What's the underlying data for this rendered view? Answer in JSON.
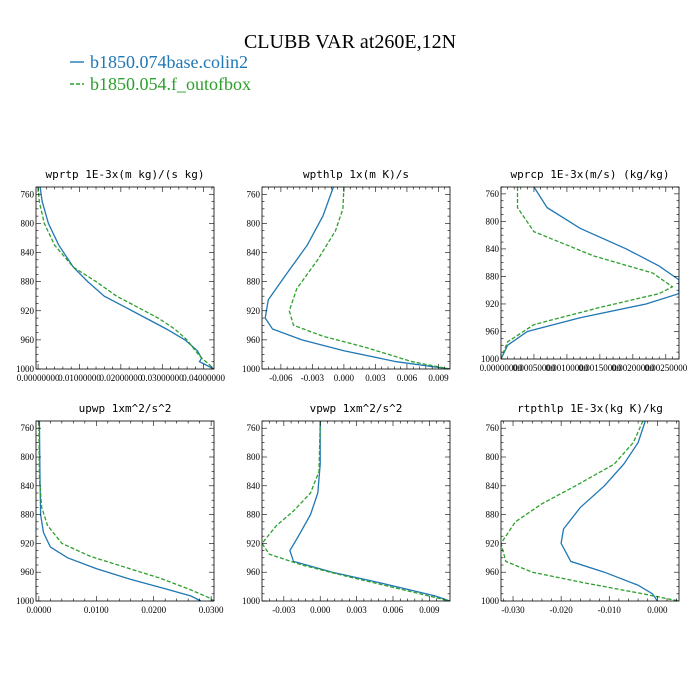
{
  "figure": {
    "title": "CLUBB VAR at260E,12N",
    "legend": [
      {
        "label": "b1850.074base.colin2",
        "color": "#1f77b4",
        "dash": "solid"
      },
      {
        "label": "b1850.054.f_outofbox",
        "color": "#2ca02c",
        "dash": "dashed"
      }
    ]
  },
  "chart_data": [
    {
      "type": "line",
      "title": "wprtp  1E-3x(m kg)/(s kg)",
      "xlim": [
        -0.0005,
        0.0425
      ],
      "ylim": [
        1000,
        750
      ],
      "y_ticks": [
        760,
        800,
        840,
        880,
        920,
        960,
        1000
      ],
      "x_ticks": [
        0.0,
        0.01,
        0.02,
        0.03,
        0.04
      ],
      "x_tick_labels": [
        "0.00000000",
        "0.01000000",
        "0.02000000",
        "0.03000000",
        "0.04000000"
      ],
      "series": [
        {
          "name": "b1850.074base.colin2",
          "color": "#1f77b4",
          "x": [
            0.0005,
            0.001,
            0.0025,
            0.005,
            0.0085,
            0.012,
            0.016,
            0.021,
            0.026,
            0.031,
            0.0355,
            0.0385,
            0.0395,
            0.039,
            0.0425
          ],
          "y": [
            750,
            770,
            800,
            830,
            860,
            880,
            900,
            915,
            930,
            945,
            960,
            975,
            985,
            990,
            1000
          ]
        },
        {
          "name": "b1850.054.f_outofbox",
          "color": "#2ca02c",
          "x": [
            0.0,
            0.0003,
            0.0015,
            0.004,
            0.0085,
            0.014,
            0.019,
            0.024,
            0.029,
            0.033,
            0.036,
            0.038,
            0.0395,
            0.041,
            0.0425
          ],
          "y": [
            750,
            770,
            800,
            830,
            860,
            880,
            900,
            915,
            930,
            945,
            960,
            975,
            985,
            992,
            1000
          ]
        }
      ]
    },
    {
      "type": "line",
      "title": "wpthlp  1x(m K)/s",
      "xlim": [
        -0.0078,
        0.0101
      ],
      "ylim": [
        1000,
        750
      ],
      "y_ticks": [
        760,
        800,
        840,
        880,
        920,
        960,
        1000
      ],
      "x_ticks": [
        -0.006,
        -0.003,
        0.0,
        0.003,
        0.006,
        0.009
      ],
      "x_tick_labels": [
        "-0.006",
        "-0.003",
        "0.000",
        "0.003",
        "0.006",
        "0.009"
      ],
      "series": [
        {
          "name": "b1850.074base.colin2",
          "color": "#1f77b4",
          "x": [
            -0.001,
            -0.002,
            -0.0035,
            -0.0055,
            -0.0072,
            -0.0075,
            -0.0068,
            -0.004,
            0.0,
            0.005,
            0.0101
          ],
          "y": [
            750,
            790,
            830,
            870,
            905,
            930,
            945,
            960,
            975,
            990,
            1000
          ]
        },
        {
          "name": "b1850.054.f_outofbox",
          "color": "#2ca02c",
          "x": [
            0.0,
            -0.0001,
            -0.0008,
            -0.0025,
            -0.0045,
            -0.0052,
            -0.0048,
            -0.002,
            0.002,
            0.0065,
            0.0101
          ],
          "y": [
            750,
            780,
            810,
            850,
            890,
            920,
            940,
            955,
            970,
            990,
            1000
          ]
        }
      ]
    },
    {
      "type": "line",
      "title": "wprcp  1E-3x(m/s) (kg/kg)",
      "xlim": [
        0.0,
        0.0027
      ],
      "ylim": [
        1000,
        750
      ],
      "y_ticks": [
        760,
        800,
        840,
        880,
        920,
        960,
        1000
      ],
      "x_ticks": [
        0.0,
        0.0005,
        0.001,
        0.0015,
        0.002,
        0.0025
      ],
      "x_tick_labels": [
        "0.00000000",
        "0.00050000",
        "0.00100000",
        "0.00150000",
        "0.00200000",
        "0.00250000"
      ],
      "series": [
        {
          "name": "b1850.074base.colin2",
          "color": "#1f77b4",
          "x": [
            0.0005,
            0.0007,
            0.0012,
            0.0019,
            0.0024,
            0.0027,
            0.0027,
            0.0022,
            0.0012,
            0.0004,
            0.0001,
            0.0
          ],
          "y": [
            750,
            780,
            810,
            840,
            865,
            885,
            905,
            920,
            940,
            960,
            980,
            1000
          ]
        },
        {
          "name": "b1850.054.f_outofbox",
          "color": "#2ca02c",
          "x": [
            0.00025,
            0.00025,
            0.0005,
            0.0014,
            0.0023,
            0.0026,
            0.0024,
            0.0015,
            0.0005,
            0.0001,
            0.0
          ],
          "y": [
            750,
            780,
            815,
            850,
            875,
            895,
            905,
            925,
            950,
            975,
            1000
          ]
        }
      ]
    },
    {
      "type": "line",
      "title": "upwp  1xm^2/s^2",
      "xlim": [
        -0.0005,
        0.0305
      ],
      "ylim": [
        1000,
        750
      ],
      "y_ticks": [
        760,
        800,
        840,
        880,
        920,
        960,
        1000
      ],
      "x_ticks": [
        0.0,
        0.01,
        0.02,
        0.03
      ],
      "x_tick_labels": [
        "0.0000",
        "0.0100",
        "0.0200",
        "0.0300"
      ],
      "series": [
        {
          "name": "b1850.074base.colin2",
          "color": "#1f77b4",
          "x": [
            0.0001,
            0.0002,
            0.0003,
            0.0008,
            0.002,
            0.005,
            0.01,
            0.016,
            0.022,
            0.0265,
            0.0282
          ],
          "y": [
            750,
            830,
            880,
            905,
            925,
            940,
            955,
            970,
            983,
            993,
            1000
          ]
        },
        {
          "name": "b1850.054.f_outofbox",
          "color": "#2ca02c",
          "x": [
            0.0,
            0.0001,
            0.0005,
            0.0015,
            0.004,
            0.009,
            0.015,
            0.021,
            0.026,
            0.0295,
            0.0305
          ],
          "y": [
            750,
            830,
            870,
            895,
            920,
            938,
            953,
            968,
            983,
            995,
            1000
          ]
        }
      ]
    },
    {
      "type": "line",
      "title": "vpwp  1xm^2/s^2",
      "xlim": [
        -0.0048,
        0.0107
      ],
      "ylim": [
        1000,
        750
      ],
      "y_ticks": [
        760,
        800,
        840,
        880,
        920,
        960,
        1000
      ],
      "x_ticks": [
        -0.003,
        0.0,
        0.003,
        0.006,
        0.009
      ],
      "x_tick_labels": [
        "-0.003",
        "0.000",
        "0.003",
        "0.006",
        "0.009"
      ],
      "series": [
        {
          "name": "b1850.074base.colin2",
          "color": "#1f77b4",
          "x": [
            0.0,
            0.0,
            -0.0002,
            -0.0008,
            -0.0018,
            -0.0025,
            -0.0022,
            0.001,
            0.005,
            0.0095,
            0.0107
          ],
          "y": [
            750,
            810,
            850,
            880,
            910,
            930,
            945,
            960,
            975,
            993,
            1000
          ]
        },
        {
          "name": "b1850.054.f_outofbox",
          "color": "#2ca02c",
          "x": [
            0.0,
            -0.0001,
            -0.0008,
            -0.0022,
            -0.0036,
            -0.0048,
            -0.0042,
            -0.0015,
            0.002,
            0.0065,
            0.0107
          ],
          "y": [
            750,
            820,
            850,
            875,
            895,
            920,
            935,
            950,
            965,
            983,
            1000
          ]
        }
      ]
    },
    {
      "type": "line",
      "title": "rtpthlp  1E-3x(kg K)/kg",
      "xlim": [
        -0.0325,
        0.0045
      ],
      "ylim": [
        1000,
        750
      ],
      "y_ticks": [
        760,
        800,
        840,
        880,
        920,
        960,
        1000
      ],
      "x_ticks": [
        -0.03,
        -0.02,
        -0.01,
        0.0
      ],
      "x_tick_labels": [
        "-0.030",
        "-0.020",
        "-0.010",
        "0.000"
      ],
      "series": [
        {
          "name": "b1850.074base.colin2",
          "color": "#1f77b4",
          "x": [
            -0.0025,
            -0.004,
            -0.007,
            -0.011,
            -0.016,
            -0.0195,
            -0.02,
            -0.018,
            -0.011,
            -0.004,
            -0.001,
            0.0
          ],
          "y": [
            750,
            780,
            810,
            840,
            870,
            900,
            920,
            945,
            960,
            978,
            990,
            1000
          ]
        },
        {
          "name": "b1850.054.f_outofbox",
          "color": "#2ca02c",
          "x": [
            -0.003,
            -0.005,
            -0.009,
            -0.017,
            -0.024,
            -0.0295,
            -0.0325,
            -0.0315,
            -0.026,
            -0.015,
            -0.003,
            0.0045
          ],
          "y": [
            750,
            780,
            810,
            840,
            865,
            890,
            920,
            945,
            960,
            975,
            990,
            1000
          ]
        }
      ]
    }
  ]
}
